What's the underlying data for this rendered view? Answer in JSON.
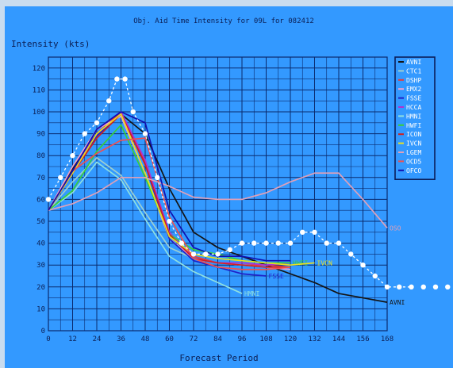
{
  "chart_data": {
    "type": "line",
    "title": "Obj. Aid Time Intensity for 09L for 082412",
    "ylabel": "Intensity (kts)",
    "xlabel": "Forecast Period",
    "xlim": [
      0,
      168
    ],
    "ylim": [
      0,
      125
    ],
    "x_ticks": [
      0,
      12,
      24,
      36,
      48,
      60,
      72,
      84,
      96,
      108,
      120,
      132,
      144,
      156,
      168
    ],
    "y_ticks": [
      0,
      10,
      20,
      30,
      40,
      50,
      60,
      70,
      80,
      90,
      100,
      110,
      120
    ],
    "grid": true,
    "legend_position": "top-right",
    "background_color": "#3399ff",
    "grid_color": "#0a2a6e",
    "series": [
      {
        "name": "AVNI",
        "color": "#141414",
        "label": "AVNI",
        "x": [
          0,
          12,
          24,
          36,
          48,
          60,
          72,
          84,
          96,
          108,
          120,
          132,
          144,
          156,
          168
        ],
        "y": [
          55,
          74,
          90,
          99,
          90,
          65,
          45,
          38,
          34,
          30,
          26,
          22,
          17,
          15,
          13
        ]
      },
      {
        "name": "CTC1",
        "color": "#9ecfcf",
        "label": "",
        "x": [
          0,
          12,
          24,
          36,
          48,
          60,
          72
        ],
        "y": [
          55,
          68,
          79,
          71,
          54,
          38,
          33
        ]
      },
      {
        "name": "DSHP",
        "color": "#e63c3c",
        "label": "",
        "x": [
          0,
          12,
          24,
          36,
          48,
          60,
          72,
          84,
          96,
          108,
          120
        ],
        "y": [
          55,
          72,
          90,
          100,
          77,
          44,
          34,
          31,
          30,
          30,
          29
        ]
      },
      {
        "name": "EMX2",
        "color": "#f2a0c8",
        "label": "",
        "x": [
          0,
          12,
          24,
          36,
          48,
          60,
          72,
          84,
          96,
          108,
          120
        ],
        "y": [
          55,
          75,
          92,
          98,
          72,
          42,
          33,
          31,
          30,
          29,
          28
        ]
      },
      {
        "name": "FSSE",
        "color": "#2020c8",
        "label": "FSSE",
        "x": [
          0,
          12,
          24,
          36,
          48,
          60,
          72,
          84,
          96,
          108
        ],
        "y": [
          55,
          73,
          89,
          99,
          76,
          42,
          32,
          29,
          26,
          25
        ]
      },
      {
        "name": "HCCA",
        "color": "#b030d0",
        "label": "",
        "x": [
          0,
          12,
          24,
          36,
          48,
          60,
          72,
          84,
          96,
          108,
          120
        ],
        "y": [
          55,
          72,
          92,
          100,
          78,
          45,
          33,
          31,
          31,
          30,
          31
        ]
      },
      {
        "name": "HMNI",
        "color": "#8fe0e0",
        "label": "HMNI",
        "x": [
          0,
          12,
          24,
          36,
          48,
          60,
          72,
          84,
          96
        ],
        "y": [
          55,
          63,
          77,
          69,
          51,
          34,
          27,
          22,
          17
        ]
      },
      {
        "name": "HWFI",
        "color": "#38d038",
        "label": "HWFI",
        "x": [
          0,
          12,
          24,
          36,
          48,
          60,
          72,
          84,
          96,
          108,
          120
        ],
        "y": [
          55,
          64,
          82,
          94,
          70,
          44,
          37,
          35,
          32,
          31,
          31
        ]
      },
      {
        "name": "ICON",
        "color": "#d02020",
        "label": "",
        "x": [
          0,
          12,
          24,
          36,
          48,
          60,
          72,
          84,
          96,
          108,
          120
        ],
        "y": [
          55,
          72,
          88,
          99,
          76,
          44,
          33,
          31,
          30,
          29,
          29
        ]
      },
      {
        "name": "IVCN",
        "color": "#e8e020",
        "label": "IVCN",
        "x": [
          0,
          12,
          24,
          36,
          48,
          60,
          72,
          84,
          96,
          108,
          120,
          132
        ],
        "y": [
          55,
          72,
          90,
          99,
          72,
          43,
          35,
          33,
          32,
          31,
          30,
          31
        ]
      },
      {
        "name": "LGEM",
        "color": "#e0a0b8",
        "label": "OSO",
        "x": [
          0,
          12,
          24,
          36,
          48,
          60,
          72,
          84,
          96,
          108,
          120,
          132,
          144,
          156,
          168
        ],
        "y": [
          55,
          58,
          63,
          70,
          70,
          66,
          61,
          60,
          60,
          63,
          68,
          72,
          72,
          60,
          47
        ]
      },
      {
        "name": "OCD5",
        "color": "#f05050",
        "label": "",
        "x": [
          0,
          12,
          24,
          36,
          48,
          60,
          72,
          84,
          96,
          108,
          120
        ],
        "y": [
          55,
          73,
          81,
          87,
          88,
          52,
          33,
          29,
          28,
          28,
          29
        ]
      },
      {
        "name": "OFCO",
        "color": "#1010b0",
        "label": "",
        "x": [
          0,
          12,
          24,
          36,
          48,
          60,
          72,
          84,
          96,
          108,
          120
        ],
        "y": [
          55,
          73,
          92,
          100,
          95,
          55,
          38,
          34,
          34,
          32,
          32
        ]
      }
    ],
    "marked_series": {
      "color": "#ffffff",
      "x": [
        0,
        6,
        12,
        18,
        24,
        30,
        34,
        38,
        42,
        48,
        54,
        60,
        66,
        72,
        78,
        84,
        90,
        96,
        102,
        108,
        114,
        120,
        126,
        132,
        138,
        144,
        150,
        156,
        162,
        168,
        174,
        180
      ],
      "y": [
        60,
        70,
        80,
        90,
        95,
        105,
        115,
        115,
        100,
        90,
        70,
        50,
        40,
        35,
        35,
        35,
        37,
        40,
        40,
        40,
        40,
        40,
        45,
        45,
        40,
        40,
        35,
        30,
        25,
        20,
        20,
        20
      ]
    },
    "marker_tail_x": [
      186,
      192,
      198
    ]
  }
}
